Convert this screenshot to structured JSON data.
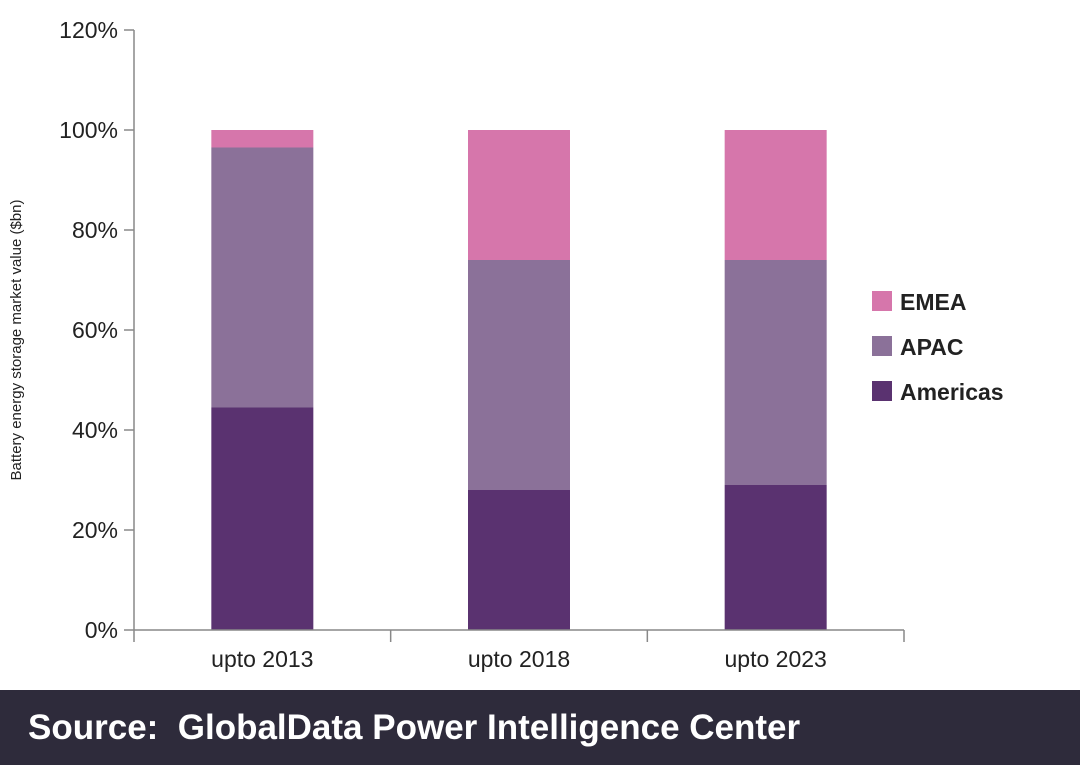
{
  "chart_data": {
    "type": "bar",
    "stacked": true,
    "title": "",
    "xlabel": "",
    "ylabel": "Battery energy storage market value ($bn)",
    "ylim": [
      0,
      120
    ],
    "yticks": [
      "0%",
      "20%",
      "40%",
      "60%",
      "80%",
      "100%",
      "120%"
    ],
    "categories": [
      "upto 2013",
      "upto 2018",
      "upto 2023"
    ],
    "series": [
      {
        "name": "Americas",
        "color": "#5a3270",
        "values": [
          44.5,
          28,
          29
        ]
      },
      {
        "name": "APAC",
        "color": "#8b7199",
        "values": [
          52,
          46,
          45
        ]
      },
      {
        "name": "EMEA",
        "color": "#d676ab",
        "values": [
          3.5,
          26,
          26
        ]
      }
    ],
    "legend": [
      "EMEA",
      "APAC",
      "Americas"
    ],
    "legend_position": "right",
    "grid": false
  },
  "footer": {
    "source_text": "Source:  GlobalData Power Intelligence Center"
  }
}
